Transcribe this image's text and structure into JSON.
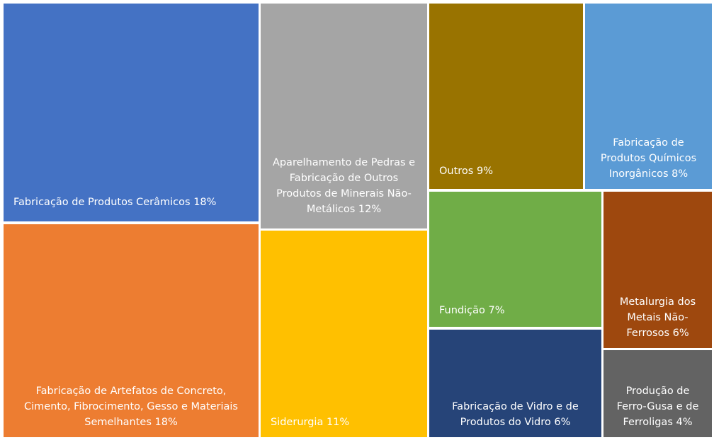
{
  "chart_data": {
    "type": "treemap",
    "categories": [
      "Fabricação de Produtos Cerâmicos",
      "Fabricação de Artefatos de Concreto, Cimento, Fibrocimento, Gesso e Materiais Semelhantes",
      "Aparelhamento de Pedras e Fabricação de Outros Produtos de Minerais Não-Metálicos",
      "Siderurgia",
      "Outros",
      "Fabricação de Produtos Químicos Inorgânicos",
      "Fundição",
      "Fabricação de Vidro e de Produtos do Vidro",
      "Metalurgia dos Metais Não-Ferrosos",
      "Produção de Ferro-Gusa e de Ferroligas"
    ],
    "values": [
      18,
      18,
      12,
      11,
      9,
      8,
      7,
      6,
      6,
      4
    ],
    "value_labels": [
      "18%",
      "18%",
      "12%",
      "11%",
      "9%",
      "8%",
      "7%",
      "6%",
      "6%",
      "4%"
    ],
    "colors": [
      "#4472c4",
      "#ed7d31",
      "#a5a5a5",
      "#ffc000",
      "#997300",
      "#5b9bd5",
      "#70ad47",
      "#264478",
      "#9e480e",
      "#636363"
    ]
  }
}
